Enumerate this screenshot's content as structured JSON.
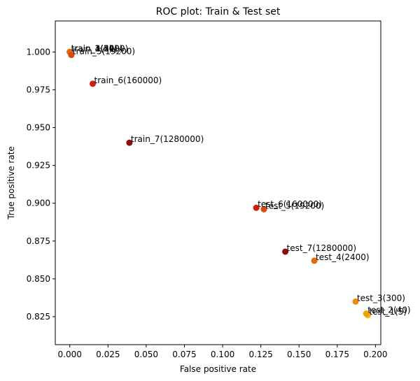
{
  "chart_data": {
    "type": "scatter",
    "title": "ROC plot: Train & Test set",
    "xlabel": "False positive rate",
    "ylabel": "True positive rate",
    "xlim": [
      -0.0095,
      0.2035
    ],
    "ylim": [
      0.8065,
      1.0205
    ],
    "xticks": [
      "0.000",
      "0.025",
      "0.050",
      "0.075",
      "0.100",
      "0.125",
      "0.150",
      "0.175",
      "0.200"
    ],
    "yticks": [
      "0.825",
      "0.850",
      "0.875",
      "0.900",
      "0.925",
      "0.950",
      "0.975",
      "1.000"
    ],
    "grid": false,
    "points": [
      {
        "label": "train_1(5)",
        "x": 0.0,
        "y": 1.0,
        "color": "#f5a020"
      },
      {
        "label": "train_2(40)",
        "x": 0.0,
        "y": 1.0,
        "color": "#f09018"
      },
      {
        "label": "train_3(300)",
        "x": 0.0,
        "y": 1.0,
        "color": "#eb8010"
      },
      {
        "label": "train_4(2400)",
        "x": 0.0,
        "y": 1.0,
        "color": "#e06808"
      },
      {
        "label": "train_5(19200)",
        "x": 0.001,
        "y": 0.998,
        "color": "#d84a10"
      },
      {
        "label": "train_6(160000)",
        "x": 0.015,
        "y": 0.979,
        "color": "#cc1f12"
      },
      {
        "label": "train_7(1280000)",
        "x": 0.039,
        "y": 0.94,
        "color": "#8c0c0c"
      },
      {
        "label": "test_1(5)",
        "x": 0.195,
        "y": 0.826,
        "color": "#f5b400"
      },
      {
        "label": "test_2(40)",
        "x": 0.194,
        "y": 0.827,
        "color": "#f2a000"
      },
      {
        "label": "test_3(300)",
        "x": 0.187,
        "y": 0.835,
        "color": "#eb8c0a"
      },
      {
        "label": "test_4(2400)",
        "x": 0.16,
        "y": 0.862,
        "color": "#e06a10"
      },
      {
        "label": "test_5(19200)",
        "x": 0.127,
        "y": 0.896,
        "color": "#d84a10"
      },
      {
        "label": "test_6(160000)",
        "x": 0.122,
        "y": 0.897,
        "color": "#cc1f12"
      },
      {
        "label": "test_7(1280000)",
        "x": 0.141,
        "y": 0.868,
        "color": "#8c0c0c"
      }
    ]
  }
}
